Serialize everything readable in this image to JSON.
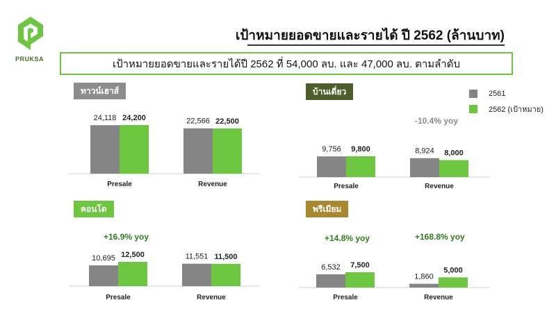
{
  "header": {
    "logo_text": "PRUKSA",
    "title": "เป้าหมายยอดขายและรายได้ ปี 2562 (ล้านบาท)",
    "banner": "เป้าหมายยอดขายและรายได้ปี 2562 ที่ 54,000 ลบ. และ 47,000 ลบ. ตามลำดับ"
  },
  "legend": {
    "items": [
      {
        "label": "2561",
        "color": "#858585"
      },
      {
        "label": "2562 (เป้าหมาย)",
        "color": "#6cc63f"
      }
    ]
  },
  "colors": {
    "actual": "#858585",
    "target": "#6cc63f",
    "yoy_green": "#2e7d1e",
    "yoy_gray": "#8a8a8a"
  },
  "panels": [
    {
      "tag": "ทาวน์เฮาส์",
      "tag_color": "#8c8c8c",
      "yoy_labels": []
    },
    {
      "tag": "บ้านเดี่ยว",
      "tag_color": "#4d5e2a",
      "yoy_labels": [
        "-10.4% yoy"
      ]
    },
    {
      "tag": "คอนโด",
      "tag_color": "#6cc63f",
      "yoy_labels": [
        "+16.9% yoy"
      ]
    },
    {
      "tag": "พรีเมียม",
      "tag_color": "#a8872f",
      "yoy_labels": [
        "+14.8% yoy",
        "+168.8% yoy"
      ]
    }
  ],
  "chart_data": [
    {
      "type": "bar",
      "title": "ทาวน์เฮาส์",
      "categories": [
        "Presale",
        "Revenue"
      ],
      "series": [
        {
          "name": "2561",
          "values": [
            24118,
            22566
          ],
          "labels": [
            "24,118",
            "22,566"
          ]
        },
        {
          "name": "2562 (เป้าหมาย)",
          "values": [
            24200,
            22500
          ],
          "labels": [
            "24,200",
            "22,500"
          ]
        }
      ]
    },
    {
      "type": "bar",
      "title": "บ้านเดี่ยว",
      "categories": [
        "Presale",
        "Revenue"
      ],
      "series": [
        {
          "name": "2561",
          "values": [
            9756,
            8924
          ],
          "labels": [
            "9,756",
            "8,924"
          ]
        },
        {
          "name": "2562 (เป้าหมาย)",
          "values": [
            9800,
            8000
          ],
          "labels": [
            "9,800",
            "8,000"
          ]
        }
      ]
    },
    {
      "type": "bar",
      "title": "คอนโด",
      "categories": [
        "Presale",
        "Revenue"
      ],
      "series": [
        {
          "name": "2561",
          "values": [
            10695,
            11551
          ],
          "labels": [
            "10,695",
            "11,551"
          ]
        },
        {
          "name": "2562 (เป้าหมาย)",
          "values": [
            12500,
            11500
          ],
          "labels": [
            "12,500",
            "11,500"
          ]
        }
      ]
    },
    {
      "type": "bar",
      "title": "พรีเมียม",
      "categories": [
        "Presale",
        "Revenue"
      ],
      "series": [
        {
          "name": "2561",
          "values": [
            6532,
            1860
          ],
          "labels": [
            "6,532",
            "1,860"
          ]
        },
        {
          "name": "2562 (เป้าหมาย)",
          "values": [
            7500,
            5000
          ],
          "labels": [
            "7,500",
            "5,000"
          ]
        }
      ]
    }
  ]
}
